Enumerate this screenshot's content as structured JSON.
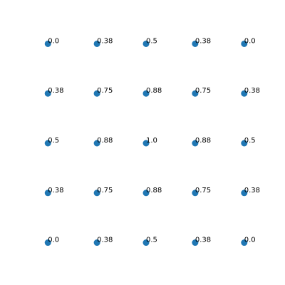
{
  "chart_data": {
    "type": "scatter",
    "title": "",
    "xlabel": "",
    "ylabel": "",
    "axes_visible": false,
    "grid": false,
    "legend": "none",
    "xlim": [
      -2.25,
      2.25
    ],
    "ylim": [
      -2.25,
      2.25
    ],
    "marker_color": "#1f77b4",
    "points": [
      {
        "x": -2,
        "y": 2,
        "label": "0.0"
      },
      {
        "x": -1,
        "y": 2,
        "label": "0.38"
      },
      {
        "x": 0,
        "y": 2,
        "label": "0.5"
      },
      {
        "x": 1,
        "y": 2,
        "label": "0.38"
      },
      {
        "x": 2,
        "y": 2,
        "label": "0.0"
      },
      {
        "x": -2,
        "y": 1,
        "label": "0.38"
      },
      {
        "x": -1,
        "y": 1,
        "label": "0.75"
      },
      {
        "x": 0,
        "y": 1,
        "label": "0.88"
      },
      {
        "x": 1,
        "y": 1,
        "label": "0.75"
      },
      {
        "x": 2,
        "y": 1,
        "label": "0.38"
      },
      {
        "x": -2,
        "y": 0,
        "label": "0.5"
      },
      {
        "x": -1,
        "y": 0,
        "label": "0.88"
      },
      {
        "x": 0,
        "y": 0,
        "label": "1.0"
      },
      {
        "x": 1,
        "y": 0,
        "label": "0.88"
      },
      {
        "x": 2,
        "y": 0,
        "label": "0.5"
      },
      {
        "x": -2,
        "y": -1,
        "label": "0.38"
      },
      {
        "x": -1,
        "y": -1,
        "label": "0.75"
      },
      {
        "x": 0,
        "y": -1,
        "label": "0.88"
      },
      {
        "x": 1,
        "y": -1,
        "label": "0.75"
      },
      {
        "x": 2,
        "y": -1,
        "label": "0.38"
      },
      {
        "x": -2,
        "y": -2,
        "label": "0.0"
      },
      {
        "x": -1,
        "y": -2,
        "label": "0.38"
      },
      {
        "x": 0,
        "y": -2,
        "label": "0.5"
      },
      {
        "x": 1,
        "y": -2,
        "label": "0.38"
      },
      {
        "x": 2,
        "y": -2,
        "label": "0.0"
      }
    ]
  }
}
